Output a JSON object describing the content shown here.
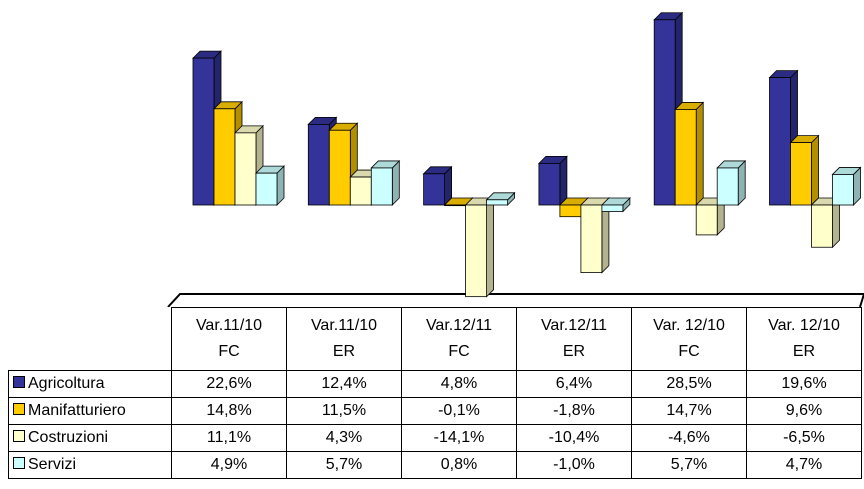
{
  "chart_data": {
    "type": "bar",
    "categories": [
      "Var.11/10\nFC",
      "Var.11/10\nER",
      "Var.12/11\nFC",
      "Var.12/11\nER",
      "Var. 12/10\nFC",
      "Var. 12/10\nER"
    ],
    "series": [
      {
        "name": "Agricoltura",
        "color": "#333399",
        "values": [
          22.6,
          12.4,
          4.8,
          6.4,
          28.5,
          19.6
        ],
        "value_labels": [
          "22,6%",
          "12,4%",
          "4,8%",
          "6,4%",
          "28,5%",
          "19,6%"
        ]
      },
      {
        "name": "Manifatturiero",
        "color": "#ffcc00",
        "values": [
          14.8,
          11.5,
          -0.1,
          -1.8,
          14.7,
          9.6
        ],
        "value_labels": [
          "14,8%",
          "11,5%",
          "-0,1%",
          "-1,8%",
          "14,7%",
          "9,6%"
        ]
      },
      {
        "name": "Costruzioni",
        "color": "#ffffcc",
        "values": [
          11.1,
          4.3,
          -14.1,
          -10.4,
          -4.6,
          -6.5
        ],
        "value_labels": [
          "11,1%",
          "4,3%",
          "-14,1%",
          "-10,4%",
          "-4,6%",
          "-6,5%"
        ]
      },
      {
        "name": "Servizi",
        "color": "#ccffff",
        "values": [
          4.9,
          5.7,
          0.8,
          -1.0,
          5.7,
          4.7
        ],
        "value_labels": [
          "4,9%",
          "5,7%",
          "0,8%",
          "-1,0%",
          "5,7%",
          "4,7%"
        ]
      }
    ]
  }
}
